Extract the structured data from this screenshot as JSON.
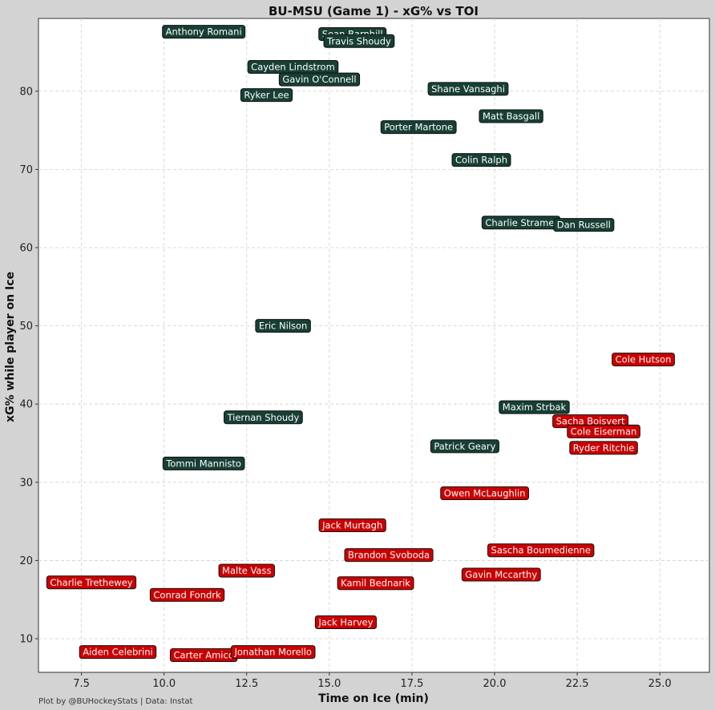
{
  "chart_data": {
    "type": "scatter",
    "title": "BU-MSU (Game 1) - xG% vs TOI",
    "xlabel": "Time on Ice (min)",
    "ylabel": "xG% while player on Ice",
    "xlim": [
      6.2,
      26.5
    ],
    "ylim": [
      5.7,
      89.3
    ],
    "xticks": [
      7.5,
      10.0,
      12.5,
      15.0,
      17.5,
      20.0,
      22.5,
      25.0
    ],
    "yticks": [
      10,
      20,
      30,
      40,
      50,
      60,
      70,
      80
    ],
    "grid": true,
    "footer": "Plot by @BUHockeyStats | Data: Instat",
    "colors": {
      "msu_fill": "#173f35",
      "msu_text": "#ffffff",
      "bu_fill": "#cc0000",
      "bu_text": "#ffffff",
      "background": "#d3d3d3",
      "plot_bg": "#ffffff"
    },
    "series": [
      {
        "team": "MSU",
        "points": [
          {
            "name": "Anthony Romani",
            "x": 11.2,
            "y": 87.6
          },
          {
            "name": "Sean Barnhill",
            "x": 15.7,
            "y": 87.3
          },
          {
            "name": "Travis Shoudy",
            "x": 15.9,
            "y": 86.4
          },
          {
            "name": "Cayden Lindstrom",
            "x": 13.9,
            "y": 83.1
          },
          {
            "name": "Gavin O'Connell",
            "x": 14.7,
            "y": 81.5
          },
          {
            "name": "Ryker Lee",
            "x": 13.1,
            "y": 79.5
          },
          {
            "name": "Shane Vansaghi",
            "x": 19.2,
            "y": 80.3
          },
          {
            "name": "Matt Basgall",
            "x": 20.5,
            "y": 76.8
          },
          {
            "name": "Porter Martone",
            "x": 17.7,
            "y": 75.4
          },
          {
            "name": "Colin Ralph",
            "x": 19.6,
            "y": 71.2
          },
          {
            "name": "Charlie Stramel",
            "x": 20.8,
            "y": 63.2
          },
          {
            "name": "Dan Russell",
            "x": 22.7,
            "y": 62.9
          },
          {
            "name": "Eric Nilson",
            "x": 13.6,
            "y": 50.0
          },
          {
            "name": "Maxim Strbak",
            "x": 21.2,
            "y": 39.6
          },
          {
            "name": "Tiernan Shoudy",
            "x": 13.0,
            "y": 38.3
          },
          {
            "name": "Patrick Geary",
            "x": 19.1,
            "y": 34.6
          },
          {
            "name": "Tommi Mannisto",
            "x": 11.2,
            "y": 32.4
          }
        ]
      },
      {
        "team": "BU",
        "points": [
          {
            "name": "Cole Hutson",
            "x": 24.5,
            "y": 45.7
          },
          {
            "name": "Sacha Boisvert",
            "x": 22.9,
            "y": 37.8
          },
          {
            "name": "Cole Eiserman",
            "x": 23.3,
            "y": 36.5
          },
          {
            "name": "Ryder Ritchie",
            "x": 23.3,
            "y": 34.4
          },
          {
            "name": "Owen McLaughlin",
            "x": 19.7,
            "y": 28.6
          },
          {
            "name": "Jack Murtagh",
            "x": 15.7,
            "y": 24.5
          },
          {
            "name": "Brandon Svoboda",
            "x": 16.8,
            "y": 20.7
          },
          {
            "name": "Sascha Boumedienne",
            "x": 21.4,
            "y": 21.3
          },
          {
            "name": "Gavin Mccarthy",
            "x": 20.2,
            "y": 18.2
          },
          {
            "name": "Kamil Bednarik",
            "x": 16.4,
            "y": 17.1
          },
          {
            "name": "Malte Vass",
            "x": 12.5,
            "y": 18.7
          },
          {
            "name": "Charlie Trethewey",
            "x": 7.8,
            "y": 17.2
          },
          {
            "name": "Conrad Fondrk",
            "x": 10.7,
            "y": 15.6
          },
          {
            "name": "Jack Harvey",
            "x": 15.5,
            "y": 12.1
          },
          {
            "name": "Aiden Celebrini",
            "x": 8.6,
            "y": 8.3
          },
          {
            "name": "Carter Amico",
            "x": 11.2,
            "y": 7.9
          },
          {
            "name": "Jonathan Morello",
            "x": 13.3,
            "y": 8.3
          }
        ]
      }
    ]
  }
}
